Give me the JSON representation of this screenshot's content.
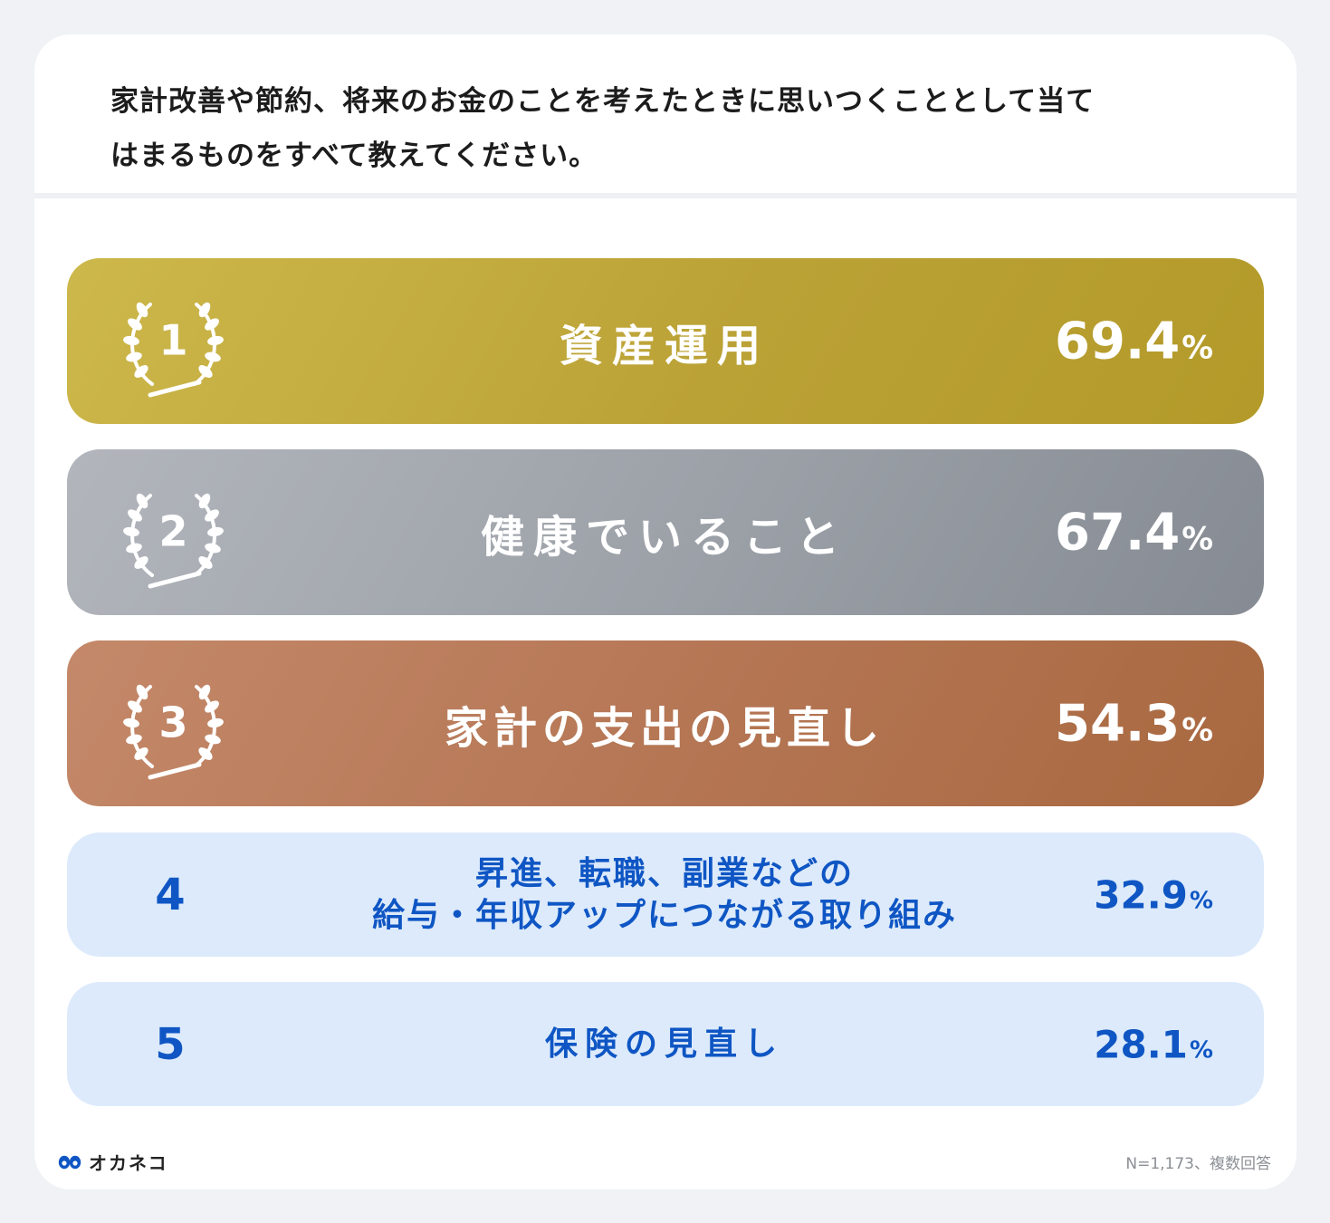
{
  "question": {
    "line1": "家計改善や節約、将来のお金のことを考えたときに思いつくこととして当て",
    "line2": "はまるものをすべて教えてください。"
  },
  "chart_data": {
    "type": "table",
    "title": "家計改善や節約、将来のお金のことを考えたときに思いつくこととして当てはまるものをすべて教えてください。",
    "unit": "%",
    "rows": [
      {
        "rank": "1",
        "label": [
          "資産運用"
        ],
        "value": 69.4,
        "value_text": "69.4",
        "medal_color": "#c9b443"
      },
      {
        "rank": "2",
        "label": [
          "健康でいること"
        ],
        "value": 67.4,
        "value_text": "67.4",
        "medal_color": "#a0a4aa"
      },
      {
        "rank": "3",
        "label": [
          "家計の支出の見直し"
        ],
        "value": 54.3,
        "value_text": "54.3",
        "medal_color": "#bb7c5a"
      },
      {
        "rank": "4",
        "label": [
          "昇進、転職、副業などの",
          "給与・年収アップにつながる取り組み"
        ],
        "value": 32.9,
        "value_text": "32.9",
        "medal_color": "#dceafb"
      },
      {
        "rank": "5",
        "label": [
          "保険の見直し"
        ],
        "value": 28.1,
        "value_text": "28.1",
        "medal_color": "#dceafb"
      }
    ]
  },
  "footer": {
    "brand": "オカネコ",
    "note": "N=1,173、複数回答",
    "accent": "#0f56c4",
    "logo_icon": "infinity-eyes-icon"
  }
}
